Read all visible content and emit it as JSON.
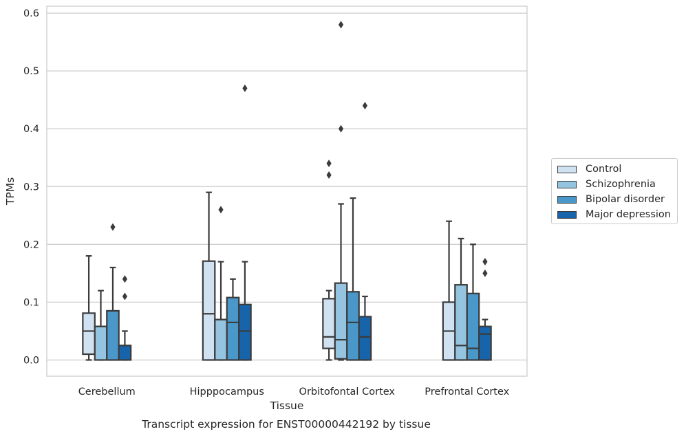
{
  "chart_data": {
    "type": "box",
    "title": "Transcript expression for ENST00000442192 by tissue",
    "xlabel": "Tissue",
    "ylabel": "TPMs",
    "ylim": [
      -0.028,
      0.612
    ],
    "yticks": [
      "0.0",
      "0.1",
      "0.2",
      "0.3",
      "0.4",
      "0.5",
      "0.6"
    ],
    "grid": true,
    "legend_position": "right",
    "categories": [
      "Cerebellum",
      "Hipppocampus",
      "Orbitofontal Cortex",
      "Prefrontal Cortex"
    ],
    "series": [
      {
        "name": "Control",
        "color": "#d0e1f2",
        "boxes": [
          {
            "whislo": 0.0,
            "q1": 0.01,
            "med": 0.05,
            "q3": 0.081,
            "whishi": 0.18,
            "fliers": []
          },
          {
            "whislo": 0.0,
            "q1": 0.0,
            "med": 0.08,
            "q3": 0.171,
            "whishi": 0.29,
            "fliers": []
          },
          {
            "whislo": 0.0,
            "q1": 0.02,
            "med": 0.04,
            "q3": 0.106,
            "whishi": 0.12,
            "fliers": [
              0.32,
              0.34
            ]
          },
          {
            "whislo": 0.0,
            "q1": 0.0,
            "med": 0.05,
            "q3": 0.1,
            "whishi": 0.24,
            "fliers": []
          }
        ]
      },
      {
        "name": "Schizophrenia",
        "color": "#94c4df",
        "boxes": [
          {
            "whislo": 0.0,
            "q1": 0.0,
            "med": 0.058,
            "q3": 0.058,
            "whishi": 0.12,
            "fliers": []
          },
          {
            "whislo": 0.0,
            "q1": 0.0,
            "med": 0.07,
            "q3": 0.07,
            "whishi": 0.17,
            "fliers": [
              0.26
            ]
          },
          {
            "whislo": 0.0,
            "q1": 0.002,
            "med": 0.035,
            "q3": 0.133,
            "whishi": 0.27,
            "fliers": [
              0.4,
              0.58
            ]
          },
          {
            "whislo": 0.0,
            "q1": 0.0,
            "med": 0.025,
            "q3": 0.13,
            "whishi": 0.21,
            "fliers": []
          }
        ]
      },
      {
        "name": "Bipolar disorder",
        "color": "#4a98c9",
        "boxes": [
          {
            "whislo": 0.0,
            "q1": 0.0,
            "med": 0.085,
            "q3": 0.085,
            "whishi": 0.16,
            "fliers": [
              0.23
            ]
          },
          {
            "whislo": 0.0,
            "q1": 0.0,
            "med": 0.065,
            "q3": 0.108,
            "whishi": 0.14,
            "fliers": []
          },
          {
            "whislo": 0.0,
            "q1": 0.0,
            "med": 0.065,
            "q3": 0.118,
            "whishi": 0.28,
            "fliers": []
          },
          {
            "whislo": 0.0,
            "q1": 0.0,
            "med": 0.02,
            "q3": 0.115,
            "whishi": 0.2,
            "fliers": []
          }
        ]
      },
      {
        "name": "Major depression",
        "color": "#1764ab",
        "boxes": [
          {
            "whislo": 0.0,
            "q1": 0.0,
            "med": 0.025,
            "q3": 0.025,
            "whishi": 0.05,
            "fliers": [
              0.11,
              0.14
            ]
          },
          {
            "whislo": 0.0,
            "q1": 0.0,
            "med": 0.05,
            "q3": 0.096,
            "whishi": 0.17,
            "fliers": [
              0.47
            ]
          },
          {
            "whislo": 0.0,
            "q1": 0.0,
            "med": 0.04,
            "q3": 0.075,
            "whishi": 0.11,
            "fliers": [
              0.44
            ]
          },
          {
            "whislo": 0.0,
            "q1": 0.0,
            "med": 0.045,
            "q3": 0.058,
            "whishi": 0.07,
            "fliers": [
              0.15,
              0.17
            ]
          }
        ]
      }
    ]
  }
}
